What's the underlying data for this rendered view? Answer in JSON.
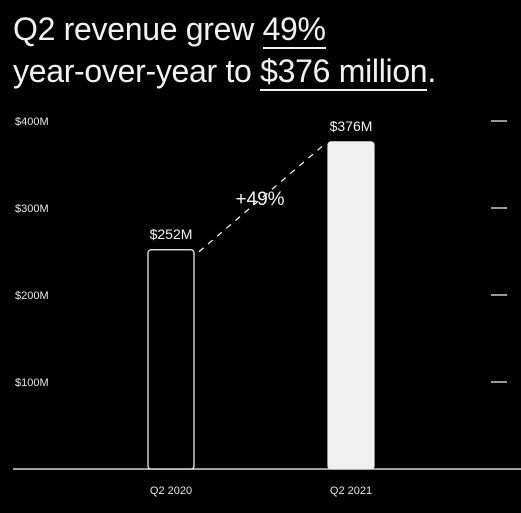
{
  "headline": {
    "part1": "Q2 revenue grew ",
    "highlight1": "49%",
    "part2": "year-over-year to ",
    "highlight2": "$376 million",
    "part3": "."
  },
  "chart_data": {
    "type": "bar",
    "categories": [
      "Q2 2020",
      "Q2 2021"
    ],
    "values": [
      252,
      376
    ],
    "value_labels": [
      "$252M",
      "$376M"
    ],
    "yticks": [
      100,
      200,
      300,
      400
    ],
    "ytick_labels": [
      "$100M",
      "$200M",
      "$300M",
      "$400M"
    ],
    "ylim": [
      0,
      400
    ],
    "annotation": "+49%",
    "colors": {
      "background": "#000000",
      "bar_2020_fill": "#000000",
      "bar_2020_stroke": "#ffffff",
      "bar_2021_fill": "#f0f0f0",
      "text": "#f2f2f2"
    }
  }
}
